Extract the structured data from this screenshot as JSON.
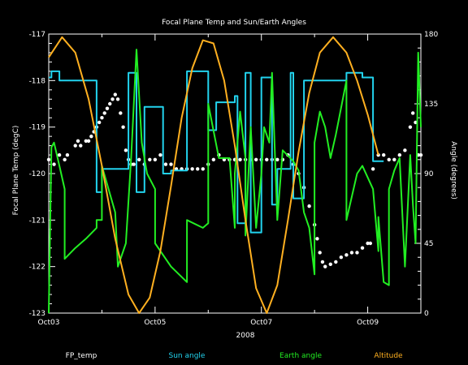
{
  "chart_data": {
    "type": "line",
    "title": "Focal Plane Temp and Sun/Earth Angles",
    "xlabel": "2008",
    "ylabel_left": "Focal Plane Temp (degC)",
    "ylabel_right": "Angle (degrees)",
    "xlim": [
      0,
      7
    ],
    "ylim_left": [
      -123,
      -117
    ],
    "ylim_right": [
      0,
      180
    ],
    "x_ticks": [
      {
        "value": 0,
        "label": "Oct03"
      },
      {
        "value": 2,
        "label": "Oct05"
      },
      {
        "value": 4,
        "label": "Oct07"
      },
      {
        "value": 6,
        "label": "Oct09"
      }
    ],
    "y_ticks_left": [
      "-117",
      "-118",
      "-119",
      "-120",
      "-121",
      "-122",
      "-123"
    ],
    "y_ticks_right": [
      "180",
      "135",
      "90",
      "45",
      "0"
    ],
    "legend": [
      {
        "label": "FP_temp",
        "color": "#ffffff"
      },
      {
        "label": "Sun angle",
        "color": "#22d3ee"
      },
      {
        "label": "Earth angle",
        "color": "#22ee22"
      },
      {
        "label": "Altitude",
        "color": "#ffb020"
      }
    ],
    "series": [
      {
        "name": "FP_temp",
        "axis": "left",
        "style": "points",
        "color": "#ffffff",
        "points": [
          [
            0,
            -119.7
          ],
          [
            0.1,
            -119.8
          ],
          [
            0.2,
            -119.6
          ],
          [
            0.3,
            -119.7
          ],
          [
            0.35,
            -119.6
          ],
          [
            0.5,
            -119.4
          ],
          [
            0.55,
            -119.3
          ],
          [
            0.6,
            -119.4
          ],
          [
            0.7,
            -119.3
          ],
          [
            0.75,
            -119.3
          ],
          [
            0.8,
            -119.2
          ],
          [
            0.85,
            -119.1
          ],
          [
            0.9,
            -119.0
          ],
          [
            0.95,
            -118.9
          ],
          [
            1.0,
            -118.8
          ],
          [
            1.05,
            -118.7
          ],
          [
            1.1,
            -118.6
          ],
          [
            1.15,
            -118.5
          ],
          [
            1.2,
            -118.4
          ],
          [
            1.25,
            -118.3
          ],
          [
            1.3,
            -118.4
          ],
          [
            1.35,
            -118.7
          ],
          [
            1.4,
            -119.0
          ],
          [
            1.45,
            -119.5
          ],
          [
            1.5,
            -119.7
          ],
          [
            1.55,
            -119.8
          ],
          [
            1.6,
            -119.8
          ],
          [
            1.7,
            -119.7
          ],
          [
            1.8,
            -119.8
          ],
          [
            1.9,
            -119.7
          ],
          [
            2.0,
            -119.7
          ],
          [
            2.1,
            -119.6
          ],
          [
            2.2,
            -119.8
          ],
          [
            2.3,
            -119.8
          ],
          [
            2.4,
            -119.9
          ],
          [
            2.5,
            -119.9
          ],
          [
            2.6,
            -119.9
          ],
          [
            2.7,
            -119.9
          ],
          [
            2.8,
            -119.9
          ],
          [
            2.9,
            -119.9
          ],
          [
            3.0,
            -119.8
          ],
          [
            3.1,
            -119.7
          ],
          [
            3.2,
            -119.6
          ],
          [
            3.3,
            -119.7
          ],
          [
            3.4,
            -119.7
          ],
          [
            3.5,
            -119.7
          ],
          [
            3.6,
            -119.7
          ],
          [
            3.7,
            -119.7
          ],
          [
            3.8,
            -119.7
          ],
          [
            3.9,
            -119.7
          ],
          [
            4.0,
            -119.7
          ],
          [
            4.1,
            -119.7
          ],
          [
            4.2,
            -119.7
          ],
          [
            4.3,
            -119.7
          ],
          [
            4.4,
            -119.7
          ],
          [
            4.5,
            -119.6
          ],
          [
            4.6,
            -119.8
          ],
          [
            4.7,
            -120.0
          ],
          [
            4.8,
            -120.3
          ],
          [
            4.9,
            -120.7
          ],
          [
            5.0,
            -121.1
          ],
          [
            5.05,
            -121.4
          ],
          [
            5.1,
            -121.7
          ],
          [
            5.15,
            -121.9
          ],
          [
            5.2,
            -122.0
          ],
          [
            5.3,
            -121.95
          ],
          [
            5.4,
            -121.9
          ],
          [
            5.5,
            -121.8
          ],
          [
            5.6,
            -121.75
          ],
          [
            5.7,
            -121.7
          ],
          [
            5.8,
            -121.7
          ],
          [
            5.9,
            -121.6
          ],
          [
            6.0,
            -121.5
          ],
          [
            6.05,
            -121.5
          ],
          [
            6.1,
            -119.9
          ],
          [
            6.2,
            -119.6
          ],
          [
            6.3,
            -119.6
          ],
          [
            6.4,
            -119.7
          ],
          [
            6.5,
            -119.7
          ],
          [
            6.6,
            -119.6
          ],
          [
            6.7,
            -119.5
          ],
          [
            6.8,
            -119.0
          ],
          [
            6.85,
            -118.7
          ],
          [
            6.9,
            -118.9
          ],
          [
            6.95,
            -119.6
          ],
          [
            7.0,
            -119.6
          ]
        ]
      },
      {
        "name": "Sun angle",
        "axis": "right",
        "style": "line",
        "color": "#22d3ee",
        "points": [
          [
            0,
            152
          ],
          [
            0.05,
            152
          ],
          [
            0.05,
            156
          ],
          [
            0.2,
            156
          ],
          [
            0.2,
            150
          ],
          [
            0.9,
            150
          ],
          [
            0.9,
            78
          ],
          [
            1.0,
            78
          ],
          [
            1.0,
            93
          ],
          [
            1.5,
            93
          ],
          [
            1.5,
            155
          ],
          [
            1.65,
            155
          ],
          [
            1.65,
            78
          ],
          [
            1.8,
            78
          ],
          [
            1.8,
            133
          ],
          [
            2.15,
            133
          ],
          [
            2.15,
            90
          ],
          [
            2.3,
            90
          ],
          [
            2.3,
            92
          ],
          [
            2.6,
            92
          ],
          [
            2.6,
            156
          ],
          [
            3.0,
            156
          ],
          [
            3.0,
            118
          ],
          [
            3.15,
            118
          ],
          [
            3.15,
            136
          ],
          [
            3.5,
            136
          ],
          [
            3.5,
            140
          ],
          [
            3.55,
            140
          ],
          [
            3.55,
            58
          ],
          [
            3.7,
            58
          ],
          [
            3.7,
            155
          ],
          [
            3.8,
            155
          ],
          [
            3.8,
            52
          ],
          [
            4.0,
            52
          ],
          [
            4.0,
            152
          ],
          [
            4.2,
            152
          ],
          [
            4.2,
            70
          ],
          [
            4.3,
            70
          ],
          [
            4.3,
            93
          ],
          [
            4.55,
            93
          ],
          [
            4.55,
            155
          ],
          [
            4.6,
            155
          ],
          [
            4.6,
            74
          ],
          [
            4.8,
            74
          ],
          [
            4.8,
            150
          ],
          [
            5.6,
            150
          ],
          [
            5.6,
            155
          ],
          [
            5.9,
            155
          ],
          [
            5.9,
            152
          ],
          [
            6.1,
            152
          ],
          [
            6.1,
            98
          ],
          [
            6.3,
            98
          ],
          [
            6.3,
            98
          ]
        ]
      },
      {
        "name": "Earth angle",
        "axis": "right",
        "style": "line",
        "color": "#22ee22",
        "points": [
          [
            0,
            0
          ],
          [
            0.05,
            107
          ],
          [
            0.1,
            110
          ],
          [
            0.2,
            95
          ],
          [
            0.3,
            80
          ],
          [
            0.3,
            35
          ],
          [
            0.5,
            42
          ],
          [
            0.7,
            48
          ],
          [
            0.9,
            55
          ],
          [
            0.9,
            60
          ],
          [
            1.0,
            60
          ],
          [
            1.0,
            95
          ],
          [
            1.25,
            65
          ],
          [
            1.3,
            30
          ],
          [
            1.45,
            45
          ],
          [
            1.55,
            100
          ],
          [
            1.65,
            170
          ],
          [
            1.75,
            110
          ],
          [
            1.85,
            90
          ],
          [
            2.0,
            80
          ],
          [
            2.0,
            45
          ],
          [
            2.3,
            30
          ],
          [
            2.6,
            20
          ],
          [
            2.6,
            60
          ],
          [
            2.9,
            55
          ],
          [
            3.0,
            58
          ],
          [
            3.0,
            135
          ],
          [
            3.2,
            100
          ],
          [
            3.4,
            100
          ],
          [
            3.5,
            55
          ],
          [
            3.5,
            90
          ],
          [
            3.6,
            130
          ],
          [
            3.7,
            100
          ],
          [
            3.7,
            50
          ],
          [
            3.8,
            120
          ],
          [
            3.9,
            55
          ],
          [
            4.0,
            90
          ],
          [
            4.05,
            120
          ],
          [
            4.15,
            110
          ],
          [
            4.2,
            155
          ],
          [
            4.3,
            60
          ],
          [
            4.4,
            105
          ],
          [
            4.6,
            98
          ],
          [
            4.7,
            92
          ],
          [
            4.8,
            65
          ],
          [
            4.9,
            55
          ],
          [
            5.0,
            25
          ],
          [
            5.0,
            110
          ],
          [
            5.1,
            130
          ],
          [
            5.2,
            120
          ],
          [
            5.3,
            100
          ],
          [
            5.4,
            115
          ],
          [
            5.6,
            150
          ],
          [
            5.6,
            60
          ],
          [
            5.8,
            90
          ],
          [
            5.9,
            95
          ],
          [
            6.1,
            80
          ],
          [
            6.2,
            40
          ],
          [
            6.2,
            62
          ],
          [
            6.3,
            20
          ],
          [
            6.4,
            18
          ],
          [
            6.4,
            80
          ],
          [
            6.5,
            92
          ],
          [
            6.6,
            100
          ],
          [
            6.7,
            30
          ],
          [
            6.8,
            102
          ],
          [
            6.85,
            70
          ],
          [
            6.9,
            45
          ],
          [
            6.95,
            168
          ],
          [
            7.0,
            120
          ]
        ]
      },
      {
        "name": "Altitude",
        "axis": "right",
        "style": "line",
        "color": "#ffb020",
        "points": [
          [
            0,
            165
          ],
          [
            0.25,
            178
          ],
          [
            0.5,
            168
          ],
          [
            0.75,
            138
          ],
          [
            1.0,
            95
          ],
          [
            1.25,
            48
          ],
          [
            1.5,
            12
          ],
          [
            1.7,
            0
          ],
          [
            1.9,
            10
          ],
          [
            2.1,
            40
          ],
          [
            2.3,
            82
          ],
          [
            2.5,
            126
          ],
          [
            2.7,
            158
          ],
          [
            2.9,
            176
          ],
          [
            3.1,
            174
          ],
          [
            3.3,
            150
          ],
          [
            3.5,
            108
          ],
          [
            3.7,
            60
          ],
          [
            3.9,
            16
          ],
          [
            4.1,
            0
          ],
          [
            4.3,
            18
          ],
          [
            4.5,
            60
          ],
          [
            4.7,
            104
          ],
          [
            4.9,
            142
          ],
          [
            5.1,
            168
          ],
          [
            5.35,
            178
          ],
          [
            5.6,
            168
          ],
          [
            5.8,
            150
          ],
          [
            6.0,
            128
          ],
          [
            6.2,
            102
          ]
        ]
      }
    ]
  }
}
